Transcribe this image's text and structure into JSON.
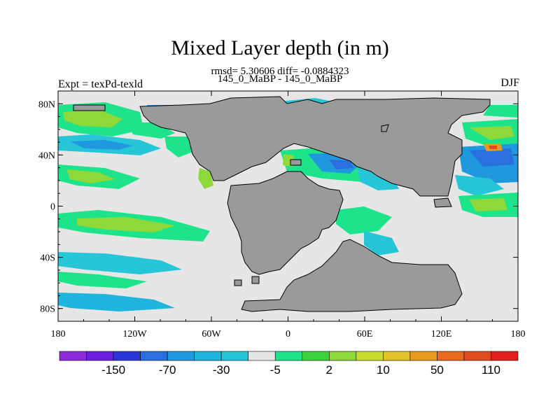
{
  "header": {
    "title": "Mixed Layer depth (in m)",
    "stats": "rmsd= 5.30606 diff= -0.0884323",
    "comparison": "145_0_MaBP - 145_0_MaBP",
    "left_label": "Expt = texPd-texld",
    "right_label": "DJF"
  },
  "axes": {
    "lat_ticks": [
      "80N",
      "40N",
      "0",
      "40S",
      "80S"
    ],
    "lat_values": [
      80,
      40,
      0,
      -40,
      -80
    ],
    "lon_ticks": [
      "180",
      "120W",
      "60W",
      "0",
      "60E",
      "120E",
      "180"
    ],
    "lon_values": [
      -180,
      -120,
      -60,
      0,
      60,
      120,
      180
    ],
    "lat_range": [
      -90,
      90
    ],
    "lon_range": [
      -180,
      180
    ]
  },
  "colorbar": {
    "labels": [
      "-150",
      "-70",
      "-30",
      "-5",
      "2",
      "10",
      "50",
      "110"
    ],
    "colors": [
      "#8c2bd9",
      "#6a1fe0",
      "#2a35d8",
      "#2a6fe0",
      "#1f98e0",
      "#1fb5dc",
      "#26c6d8",
      "#e6e6e6",
      "#1de38a",
      "#3cd23c",
      "#8ed83a",
      "#c7dd2d",
      "#e0c42a",
      "#e89a1f",
      "#e86a1f",
      "#e04a1f",
      "#e21f1f"
    ]
  },
  "map_colors": {
    "land": "#9a9a9a",
    "ocean_neutral": "#e6e6e6",
    "green": "#1de38a",
    "lime": "#8ed83a",
    "cyan": "#26c6d8",
    "lightblue": "#1fb5dc",
    "blue": "#1f98e0",
    "darkblue": "#2a6fe0",
    "yellow": "#c7dd2d",
    "orange": "#e89a1f",
    "red": "#e04a1f"
  }
}
